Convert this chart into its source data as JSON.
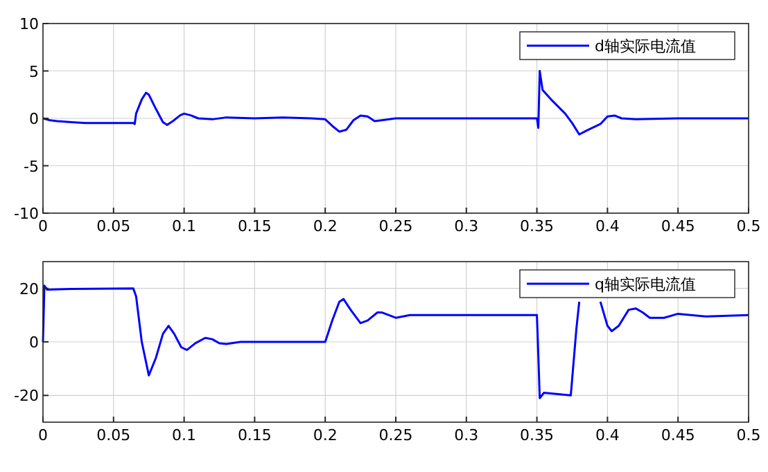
{
  "chart_data": [
    {
      "type": "line",
      "xlim": [
        0,
        0.5
      ],
      "xticks": [
        0,
        0.05,
        0.1,
        0.15,
        0.2,
        0.25,
        0.3,
        0.35,
        0.4,
        0.45,
        0.5
      ],
      "ylim": [
        -10,
        10
      ],
      "yticks": [
        -10,
        -5,
        0,
        5,
        10
      ],
      "grid": true,
      "legend": "top right",
      "line_style": "solid",
      "marker": "none",
      "x": [
        0,
        0.005,
        0.01,
        0.02,
        0.03,
        0.064,
        0.065,
        0.066,
        0.07,
        0.073,
        0.075,
        0.08,
        0.085,
        0.088,
        0.092,
        0.097,
        0.1,
        0.105,
        0.11,
        0.12,
        0.13,
        0.15,
        0.17,
        0.19,
        0.2,
        0.205,
        0.21,
        0.215,
        0.22,
        0.225,
        0.23,
        0.235,
        0.24,
        0.25,
        0.3,
        0.35,
        0.351,
        0.352,
        0.354,
        0.36,
        0.37,
        0.375,
        0.38,
        0.385,
        0.395,
        0.4,
        0.405,
        0.41,
        0.42,
        0.45,
        0.5
      ],
      "series": [
        {
          "name": "d轴实际电流值",
          "color": "#0000ff",
          "values": [
            0,
            -0.2,
            -0.3,
            -0.4,
            -0.5,
            -0.5,
            -0.6,
            0.5,
            2,
            2.7,
            2.5,
            1,
            -0.4,
            -0.7,
            -0.3,
            0.3,
            0.5,
            0.3,
            0,
            -0.1,
            0.1,
            0,
            0.1,
            0,
            -0.1,
            -0.8,
            -1.4,
            -1.2,
            -0.2,
            0.3,
            0.2,
            -0.3,
            -0.2,
            0,
            0,
            0,
            -1,
            5,
            3,
            2,
            0.5,
            -0.5,
            -1.7,
            -1.3,
            -0.6,
            0.2,
            0.3,
            0,
            -0.1,
            0,
            0
          ]
        }
      ]
    },
    {
      "type": "line",
      "xlim": [
        0,
        0.5
      ],
      "xticks": [
        0,
        0.05,
        0.1,
        0.15,
        0.2,
        0.25,
        0.3,
        0.35,
        0.4,
        0.45,
        0.5
      ],
      "ylim": [
        -30,
        30
      ],
      "yticks": [
        -20,
        0,
        20
      ],
      "grid": true,
      "legend": "top right",
      "line_style": "solid",
      "marker": "none",
      "x": [
        0,
        0.001,
        0.003,
        0.02,
        0.064,
        0.066,
        0.07,
        0.075,
        0.08,
        0.085,
        0.089,
        0.093,
        0.098,
        0.102,
        0.108,
        0.115,
        0.12,
        0.125,
        0.13,
        0.14,
        0.16,
        0.2,
        0.205,
        0.21,
        0.213,
        0.218,
        0.225,
        0.23,
        0.237,
        0.24,
        0.25,
        0.26,
        0.35,
        0.351,
        0.352,
        0.355,
        0.374,
        0.378,
        0.38,
        0.385,
        0.395,
        0.4,
        0.403,
        0.408,
        0.415,
        0.42,
        0.425,
        0.43,
        0.44,
        0.45,
        0.47,
        0.5
      ],
      "series": [
        {
          "name": "q轴实际电流值",
          "color": "#0000ff",
          "values": [
            0,
            21,
            19.5,
            19.8,
            20,
            17,
            0,
            -12.5,
            -6,
            3,
            6,
            3,
            -2,
            -3,
            -0.5,
            1.5,
            1,
            -0.5,
            -0.8,
            0,
            0,
            0,
            8,
            15,
            16,
            12,
            7,
            8,
            11,
            11,
            9,
            10,
            10,
            -5,
            -21,
            -19,
            -20,
            5,
            15,
            null,
            15,
            6,
            4,
            6,
            12,
            12.5,
            11,
            9,
            9,
            10.5,
            9.5,
            10
          ]
        }
      ]
    }
  ]
}
